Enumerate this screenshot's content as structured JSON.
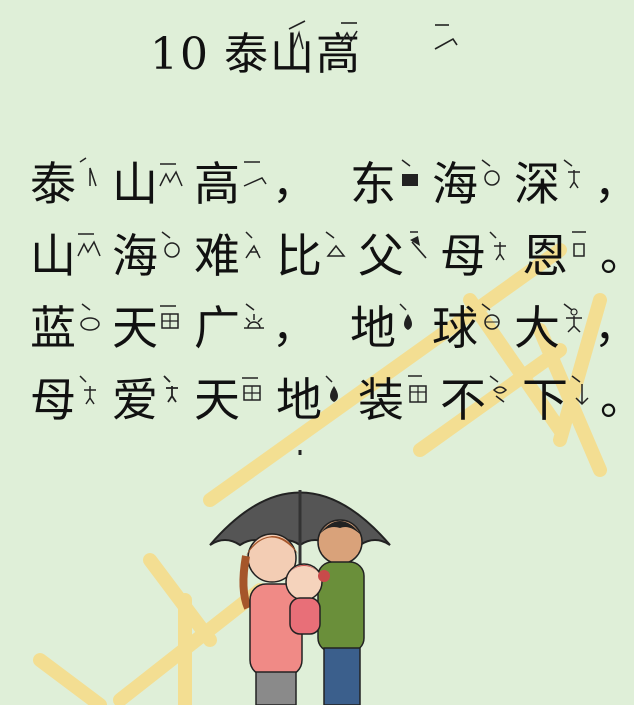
{
  "title": {
    "number": "10",
    "text": "泰山高"
  },
  "poem": {
    "lines": [
      {
        "chars": [
          "泰",
          "山",
          "高"
        ],
        "punct1": "，",
        "chars2": [
          "东",
          "海",
          "深"
        ],
        "punct2": "，"
      },
      {
        "chars": [
          "山",
          "海",
          "难",
          "比",
          "父",
          "母",
          "恩"
        ],
        "punct": "。"
      },
      {
        "chars": [
          "蓝",
          "天",
          "广"
        ],
        "punct1": "，",
        "chars2": [
          "地",
          "球",
          "大"
        ],
        "punct2": "，"
      },
      {
        "chars": [
          "母",
          "爱",
          "天",
          "地",
          "装",
          "不",
          "下"
        ],
        "punct": "。"
      }
    ]
  },
  "colors": {
    "background": "#dfefd8",
    "watermark": "#f4d77a",
    "text": "#111111"
  }
}
